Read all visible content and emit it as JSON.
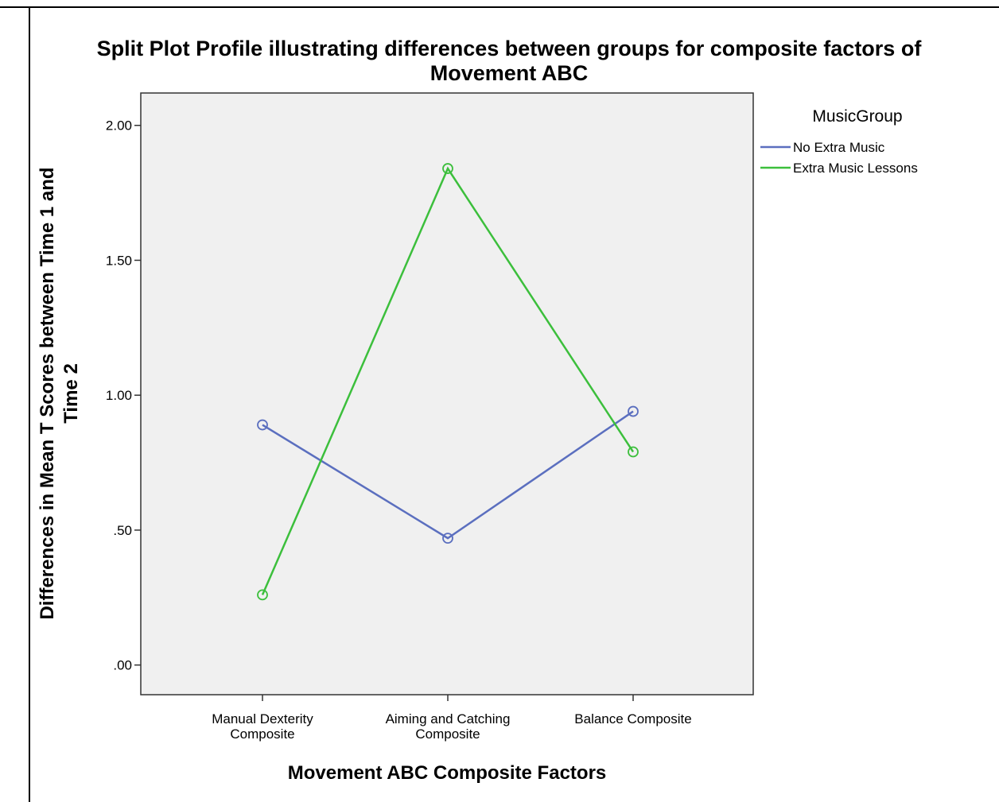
{
  "chart_data": {
    "type": "line",
    "title": "Split Plot Profile illustrating differences between groups for composite factors of Movement ABC",
    "title_lines": [
      "Split Plot Profile illustrating differences between groups for composite factors of",
      "Movement ABC"
    ],
    "xlabel": "Movement ABC Composite Factors",
    "ylabel": "Differences in Mean T Scores between Time 1 and Time 2",
    "ylabel_lines": [
      "Differences in Mean T Scores between Time 1 and",
      "Time 2"
    ],
    "categories": [
      "Manual Dexterity Composite",
      "Aiming and Catching Composite",
      "Balance Composite"
    ],
    "category_lines": [
      [
        "Manual Dexterity",
        "Composite"
      ],
      [
        "Aiming and Catching",
        "Composite"
      ],
      [
        "Balance Composite"
      ]
    ],
    "ylim": [
      -0.11,
      2.12
    ],
    "yticks": [
      0,
      0.5,
      1.0,
      1.5,
      2.0
    ],
    "ytick_labels": [
      ".00",
      ".50",
      "1.00",
      "1.50",
      "2.00"
    ],
    "grid": false,
    "legend": {
      "title": "MusicGroup",
      "position": "top-right, outside plot"
    },
    "plot_background": "#f0f0f0",
    "series": [
      {
        "name": "No Extra Music",
        "color": "#5b6fbf",
        "values": [
          0.89,
          0.47,
          0.94
        ]
      },
      {
        "name": "Extra Music Lessons",
        "color": "#3cbf3c",
        "values": [
          0.26,
          1.84,
          0.79
        ]
      }
    ]
  }
}
